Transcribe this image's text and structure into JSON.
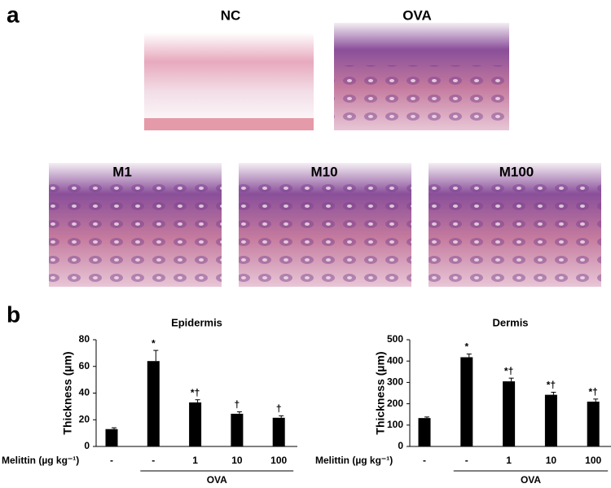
{
  "panel_labels": [
    "a",
    "b"
  ],
  "images": [
    {
      "label": "NC"
    },
    {
      "label": "OVA"
    },
    {
      "label": "M1"
    },
    {
      "label": "M10"
    },
    {
      "label": "M100"
    }
  ],
  "chart_data": [
    {
      "type": "bar",
      "title": "Epidermis",
      "y_label": "Thickness (µm)",
      "x_row_label": "Melittin (µg kg⁻¹)",
      "categories": [
        "-",
        "-",
        "1",
        "10",
        "100"
      ],
      "group_label": "OVA",
      "values": [
        13,
        64,
        33,
        24.5,
        21.5
      ],
      "errors": [
        1,
        8,
        2,
        1.5,
        1.5
      ],
      "annotations": [
        null,
        "*",
        "*†",
        "†",
        "†"
      ],
      "color": "#000000",
      "ylim": [
        0,
        80
      ],
      "yticks": [
        0,
        20,
        40,
        60,
        80
      ]
    },
    {
      "type": "bar",
      "title": "Dermis",
      "y_label": "Thickness (µm)",
      "x_row_label": "Melittin (µg kg⁻¹)",
      "categories": [
        "-",
        "-",
        "1",
        "10",
        "100"
      ],
      "group_label": "OVA",
      "values": [
        133,
        418,
        305,
        242,
        210
      ],
      "errors": [
        5,
        15,
        15,
        12,
        12
      ],
      "annotations": [
        null,
        "*",
        "*†",
        "*†",
        "*†"
      ],
      "color": "#000000",
      "ylim": [
        0,
        500
      ],
      "yticks": [
        0,
        100,
        200,
        300,
        400,
        500
      ]
    }
  ]
}
